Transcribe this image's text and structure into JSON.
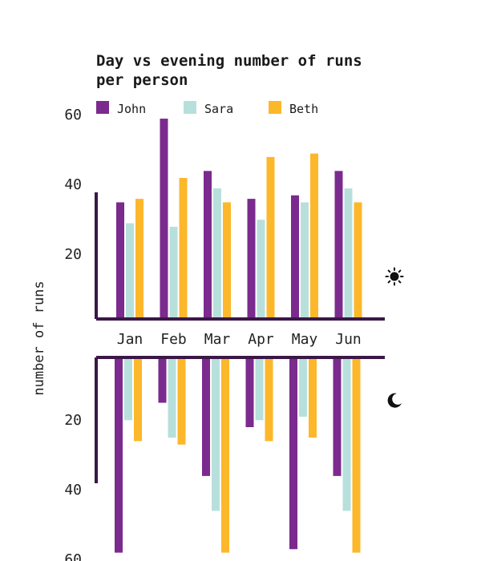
{
  "chart_data": {
    "type": "bar",
    "title_lines": [
      "Day vs evening number of runs",
      "per person"
    ],
    "ylabel": "number of runs",
    "categories": [
      "Jan",
      "Feb",
      "Mar",
      "Apr",
      "May",
      "Jun"
    ],
    "yticks_day": [
      "60",
      "40",
      "20"
    ],
    "yticks_evening": [
      "20",
      "40",
      "60"
    ],
    "ylim": [
      0,
      60
    ],
    "legend_position": "top-left",
    "grid": false,
    "panels": {
      "day_icon": "sun-icon",
      "evening_icon": "moon-icon"
    },
    "series": [
      {
        "name": "John",
        "color": "#7b2a8e",
        "day": [
          33,
          57,
          42,
          34,
          35,
          42
        ],
        "evening": [
          56,
          13,
          34,
          20,
          55,
          34
        ]
      },
      {
        "name": "Sara",
        "color": "#b7e0dc",
        "day": [
          27,
          26,
          37,
          28,
          33,
          37
        ],
        "evening": [
          18,
          23,
          44,
          18,
          17,
          44
        ]
      },
      {
        "name": "Beth",
        "color": "#fdb72b",
        "day": [
          34,
          40,
          33,
          46,
          47,
          33
        ],
        "evening": [
          24,
          25,
          56,
          24,
          23,
          56
        ]
      }
    ]
  }
}
